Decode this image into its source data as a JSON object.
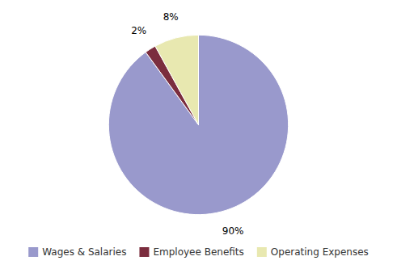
{
  "chart_data": {
    "type": "pie",
    "categories": [
      "Wages & Salaries",
      "Employee Benefits",
      "Operating Expenses"
    ],
    "values": [
      90,
      2,
      8
    ],
    "value_labels": [
      "90%",
      "2%",
      "8%"
    ],
    "colors": [
      "#9999cc",
      "#7b2d3e",
      "#e8e8b0"
    ],
    "data_labels": true,
    "legend": "bottom"
  }
}
